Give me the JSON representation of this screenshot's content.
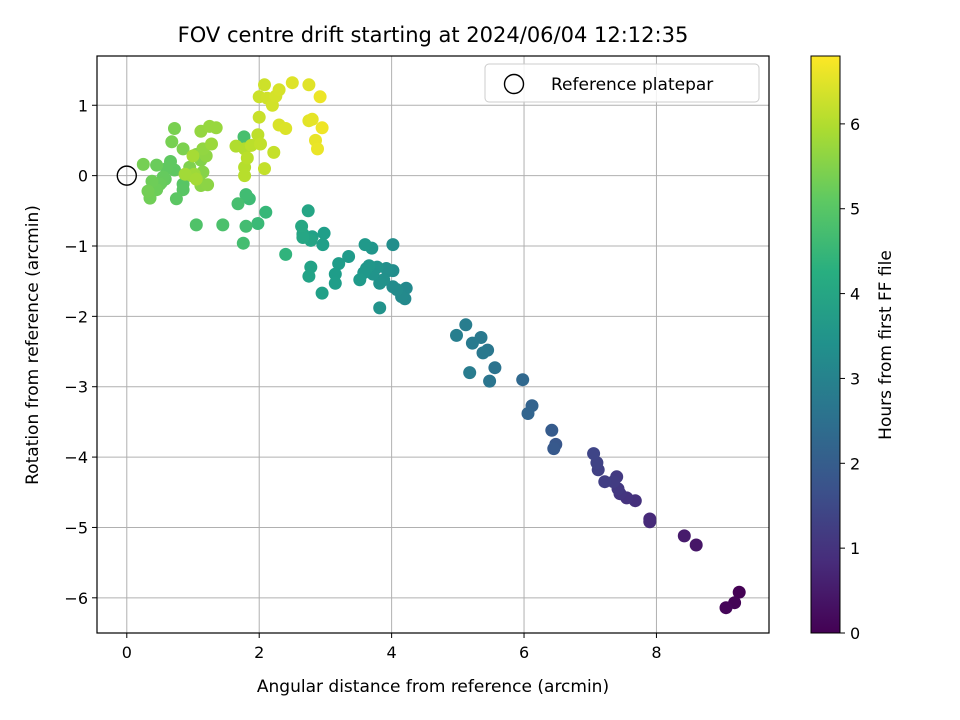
{
  "chart_data": {
    "type": "scatter",
    "title": "FOV centre drift starting at 2024/06/04 12:12:35",
    "xlabel": "Angular distance from reference (arcmin)",
    "ylabel": "Rotation from reference (arcmin)",
    "xlim": [
      -0.45,
      9.7
    ],
    "ylim": [
      -6.5,
      1.7
    ],
    "xticks": [
      0,
      2,
      4,
      6,
      8
    ],
    "yticks": [
      1,
      0,
      -1,
      -2,
      -3,
      -4,
      -5,
      -6
    ],
    "grid": true,
    "legend": {
      "label": "Reference platepar",
      "placement": "top-right"
    },
    "reference_point": {
      "x": 0,
      "y": 0
    },
    "colorbar": {
      "label": "Hours from first FF file",
      "colormap": "viridis",
      "range": [
        0,
        6.8
      ],
      "ticks": [
        0,
        1,
        2,
        3,
        4,
        5,
        6
      ]
    },
    "points": [
      {
        "x": 9.25,
        "y": -5.92,
        "h": 0.0
      },
      {
        "x": 9.18,
        "y": -6.07,
        "h": 0.05
      },
      {
        "x": 9.05,
        "y": -6.14,
        "h": 0.1
      },
      {
        "x": 8.6,
        "y": -5.25,
        "h": 0.4
      },
      {
        "x": 8.42,
        "y": -5.12,
        "h": 0.5
      },
      {
        "x": 7.9,
        "y": -4.88,
        "h": 0.8
      },
      {
        "x": 7.9,
        "y": -4.92,
        "h": 0.82
      },
      {
        "x": 7.68,
        "y": -4.62,
        "h": 0.95
      },
      {
        "x": 7.55,
        "y": -4.58,
        "h": 1.0
      },
      {
        "x": 7.45,
        "y": -4.52,
        "h": 1.05
      },
      {
        "x": 7.42,
        "y": -4.45,
        "h": 1.1
      },
      {
        "x": 7.4,
        "y": -4.28,
        "h": 1.15
      },
      {
        "x": 7.35,
        "y": -4.35,
        "h": 1.2
      },
      {
        "x": 7.22,
        "y": -4.35,
        "h": 1.25
      },
      {
        "x": 7.12,
        "y": -4.18,
        "h": 1.3
      },
      {
        "x": 7.1,
        "y": -4.08,
        "h": 1.35
      },
      {
        "x": 7.05,
        "y": -3.95,
        "h": 1.4
      },
      {
        "x": 6.48,
        "y": -3.82,
        "h": 1.85
      },
      {
        "x": 6.45,
        "y": -3.88,
        "h": 1.9
      },
      {
        "x": 6.42,
        "y": -3.62,
        "h": 1.95
      },
      {
        "x": 6.12,
        "y": -3.27,
        "h": 2.15
      },
      {
        "x": 6.06,
        "y": -3.38,
        "h": 2.2
      },
      {
        "x": 5.98,
        "y": -2.9,
        "h": 2.3
      },
      {
        "x": 5.56,
        "y": -2.73,
        "h": 2.6
      },
      {
        "x": 5.48,
        "y": -2.92,
        "h": 2.65
      },
      {
        "x": 5.45,
        "y": -2.48,
        "h": 2.7
      },
      {
        "x": 5.38,
        "y": -2.52,
        "h": 2.72
      },
      {
        "x": 5.35,
        "y": -2.3,
        "h": 2.75
      },
      {
        "x": 5.22,
        "y": -2.38,
        "h": 2.8
      },
      {
        "x": 5.18,
        "y": -2.8,
        "h": 2.85
      },
      {
        "x": 5.12,
        "y": -2.12,
        "h": 2.88
      },
      {
        "x": 4.98,
        "y": -2.27,
        "h": 2.92
      },
      {
        "x": 4.2,
        "y": -1.75,
        "h": 3.2
      },
      {
        "x": 4.22,
        "y": -1.6,
        "h": 3.22
      },
      {
        "x": 4.15,
        "y": -1.72,
        "h": 3.25
      },
      {
        "x": 4.08,
        "y": -1.62,
        "h": 3.28
      },
      {
        "x": 4.02,
        "y": -1.58,
        "h": 3.3
      },
      {
        "x": 4.02,
        "y": -1.35,
        "h": 3.32
      },
      {
        "x": 4.02,
        "y": -0.98,
        "h": 3.35
      },
      {
        "x": 3.95,
        "y": -1.35,
        "h": 3.38
      },
      {
        "x": 3.92,
        "y": -1.32,
        "h": 3.4
      },
      {
        "x": 3.88,
        "y": -1.48,
        "h": 3.42
      },
      {
        "x": 3.82,
        "y": -1.53,
        "h": 3.45
      },
      {
        "x": 3.82,
        "y": -1.88,
        "h": 3.48
      },
      {
        "x": 3.78,
        "y": -1.3,
        "h": 3.5
      },
      {
        "x": 3.72,
        "y": -1.4,
        "h": 3.52
      },
      {
        "x": 3.7,
        "y": -1.03,
        "h": 3.55
      },
      {
        "x": 3.66,
        "y": -1.28,
        "h": 3.58
      },
      {
        "x": 3.62,
        "y": -1.32,
        "h": 3.6
      },
      {
        "x": 3.58,
        "y": -1.38,
        "h": 3.62
      },
      {
        "x": 3.6,
        "y": -0.98,
        "h": 3.65
      },
      {
        "x": 3.52,
        "y": -1.48,
        "h": 3.68
      },
      {
        "x": 3.35,
        "y": -1.15,
        "h": 3.7
      },
      {
        "x": 3.2,
        "y": -1.25,
        "h": 3.72
      },
      {
        "x": 3.15,
        "y": -1.4,
        "h": 3.75
      },
      {
        "x": 3.15,
        "y": -1.53,
        "h": 3.78
      },
      {
        "x": 2.98,
        "y": -0.82,
        "h": 3.8
      },
      {
        "x": 2.96,
        "y": -0.98,
        "h": 3.82
      },
      {
        "x": 2.95,
        "y": -1.67,
        "h": 3.85
      },
      {
        "x": 2.8,
        "y": -0.87,
        "h": 3.88
      },
      {
        "x": 2.78,
        "y": -1.3,
        "h": 3.9
      },
      {
        "x": 2.75,
        "y": -1.43,
        "h": 3.92
      },
      {
        "x": 2.78,
        "y": -0.92,
        "h": 3.95
      },
      {
        "x": 2.74,
        "y": -0.5,
        "h": 3.98
      },
      {
        "x": 2.66,
        "y": -0.83,
        "h": 4.0
      },
      {
        "x": 2.66,
        "y": -0.88,
        "h": 4.02
      },
      {
        "x": 2.64,
        "y": -0.72,
        "h": 4.05
      },
      {
        "x": 2.4,
        "y": -1.12,
        "h": 4.4
      },
      {
        "x": 2.1,
        "y": -0.52,
        "h": 4.55
      },
      {
        "x": 1.98,
        "y": -0.68,
        "h": 4.6
      },
      {
        "x": 1.85,
        "y": -0.33,
        "h": 4.65
      },
      {
        "x": 1.8,
        "y": -0.27,
        "h": 4.7
      },
      {
        "x": 1.8,
        "y": -0.72,
        "h": 4.72
      },
      {
        "x": 1.76,
        "y": -0.96,
        "h": 4.75
      },
      {
        "x": 1.68,
        "y": -0.4,
        "h": 4.78
      },
      {
        "x": 1.77,
        "y": 0.55,
        "h": 4.8
      },
      {
        "x": 1.45,
        "y": -0.7,
        "h": 4.85
      },
      {
        "x": 1.05,
        "y": -0.7,
        "h": 4.9
      },
      {
        "x": 0.85,
        "y": -0.12,
        "h": 5.0
      },
      {
        "x": 0.85,
        "y": -0.2,
        "h": 5.02
      },
      {
        "x": 0.75,
        "y": -0.33,
        "h": 5.05
      },
      {
        "x": 0.72,
        "y": 0.08,
        "h": 5.08
      },
      {
        "x": 0.66,
        "y": 0.2,
        "h": 5.1
      },
      {
        "x": 0.6,
        "y": 0.1,
        "h": 5.12
      },
      {
        "x": 0.58,
        "y": -0.05,
        "h": 5.15
      },
      {
        "x": 0.55,
        "y": -0.02,
        "h": 5.18
      },
      {
        "x": 0.52,
        "y": -0.1,
        "h": 5.2
      },
      {
        "x": 0.5,
        "y": -0.12,
        "h": 5.22
      },
      {
        "x": 0.45,
        "y": 0.15,
        "h": 5.25
      },
      {
        "x": 0.45,
        "y": -0.2,
        "h": 5.28
      },
      {
        "x": 0.38,
        "y": -0.08,
        "h": 5.3
      },
      {
        "x": 0.35,
        "y": -0.32,
        "h": 5.32
      },
      {
        "x": 0.32,
        "y": -0.22,
        "h": 5.35
      },
      {
        "x": 0.25,
        "y": 0.16,
        "h": 5.38
      },
      {
        "x": 0.68,
        "y": 0.48,
        "h": 5.4
      },
      {
        "x": 0.72,
        "y": 0.67,
        "h": 5.42
      },
      {
        "x": 0.85,
        "y": 0.38,
        "h": 5.45
      },
      {
        "x": 0.95,
        "y": 0.12,
        "h": 5.48
      },
      {
        "x": 1.05,
        "y": 0.3,
        "h": 5.5
      },
      {
        "x": 1.12,
        "y": 0.22,
        "h": 5.52
      },
      {
        "x": 1.15,
        "y": 0.05,
        "h": 5.55
      },
      {
        "x": 1.1,
        "y": -0.08,
        "h": 5.58
      },
      {
        "x": 1.12,
        "y": -0.14,
        "h": 5.6
      },
      {
        "x": 1.22,
        "y": -0.13,
        "h": 5.62
      },
      {
        "x": 1.2,
        "y": 0.28,
        "h": 5.65
      },
      {
        "x": 1.15,
        "y": 0.38,
        "h": 5.68
      },
      {
        "x": 1.12,
        "y": 0.63,
        "h": 5.7
      },
      {
        "x": 1.25,
        "y": 0.7,
        "h": 5.72
      },
      {
        "x": 1.35,
        "y": 0.68,
        "h": 5.75
      },
      {
        "x": 1.28,
        "y": 0.45,
        "h": 5.78
      },
      {
        "x": 1.02,
        "y": 0.02,
        "h": 5.8
      },
      {
        "x": 0.98,
        "y": 0.0,
        "h": 5.82
      },
      {
        "x": 0.88,
        "y": 0.02,
        "h": 5.85
      },
      {
        "x": 1.05,
        "y": -0.05,
        "h": 5.88
      },
      {
        "x": 1.0,
        "y": 0.28,
        "h": 5.9
      },
      {
        "x": 1.65,
        "y": 0.42,
        "h": 6.0
      },
      {
        "x": 1.78,
        "y": 0.38,
        "h": 6.02
      },
      {
        "x": 1.78,
        "y": 0.12,
        "h": 6.05
      },
      {
        "x": 1.78,
        "y": 0.0,
        "h": 6.08
      },
      {
        "x": 1.82,
        "y": 0.25,
        "h": 6.1
      },
      {
        "x": 1.88,
        "y": 0.43,
        "h": 6.12
      },
      {
        "x": 1.98,
        "y": 0.58,
        "h": 6.15
      },
      {
        "x": 2.02,
        "y": 0.45,
        "h": 6.18
      },
      {
        "x": 2.08,
        "y": 0.1,
        "h": 6.2
      },
      {
        "x": 2.22,
        "y": 0.33,
        "h": 6.22
      },
      {
        "x": 2.0,
        "y": 0.83,
        "h": 6.25
      },
      {
        "x": 2.0,
        "y": 1.12,
        "h": 6.28
      },
      {
        "x": 2.08,
        "y": 1.29,
        "h": 6.3
      },
      {
        "x": 2.12,
        "y": 1.1,
        "h": 6.32
      },
      {
        "x": 2.2,
        "y": 1.0,
        "h": 6.35
      },
      {
        "x": 2.25,
        "y": 1.13,
        "h": 6.38
      },
      {
        "x": 2.3,
        "y": 1.22,
        "h": 6.4
      },
      {
        "x": 2.3,
        "y": 0.72,
        "h": 6.42
      },
      {
        "x": 2.4,
        "y": 0.67,
        "h": 6.45
      },
      {
        "x": 2.5,
        "y": 1.32,
        "h": 6.48
      },
      {
        "x": 2.75,
        "y": 1.29,
        "h": 6.5
      },
      {
        "x": 2.75,
        "y": 0.78,
        "h": 6.52
      },
      {
        "x": 2.8,
        "y": 0.8,
        "h": 6.55
      },
      {
        "x": 2.85,
        "y": 0.5,
        "h": 6.58
      },
      {
        "x": 2.88,
        "y": 0.38,
        "h": 6.6
      },
      {
        "x": 2.92,
        "y": 1.12,
        "h": 6.62
      },
      {
        "x": 2.95,
        "y": 0.68,
        "h": 6.65
      }
    ]
  }
}
